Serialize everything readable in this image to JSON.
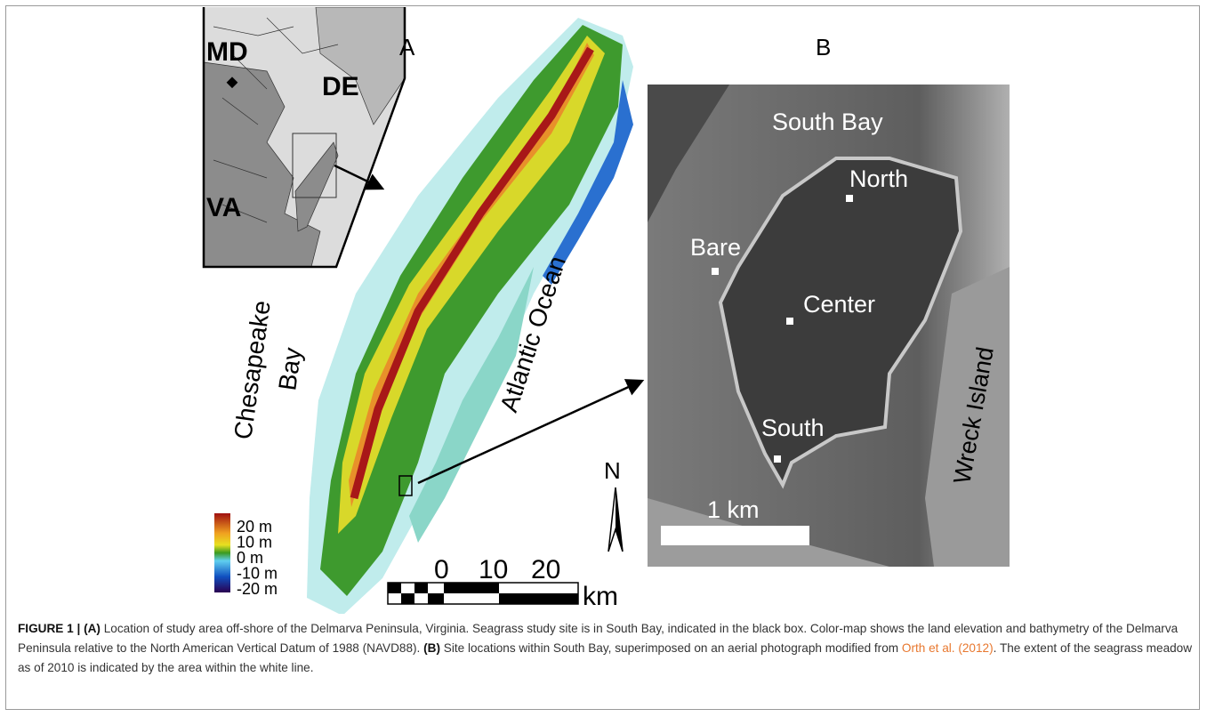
{
  "panel_a": {
    "label": "A",
    "inset": {
      "md": "MD",
      "de": "DE",
      "va": "VA"
    },
    "bay": [
      "Chesapeake",
      "Bay"
    ],
    "ocean": "Atlantic Ocean",
    "legend": [
      "20 m",
      "10 m",
      "0 m",
      "-10 m",
      "-20 m"
    ],
    "scale": {
      "ticks": [
        "0",
        "10",
        "20"
      ],
      "unit": "km"
    },
    "north": "N"
  },
  "panel_b": {
    "label": "B",
    "south_bay": "South Bay",
    "north": "North",
    "bare": "Bare",
    "center": "Center",
    "south": "South",
    "wreck_island": "Wreck Island",
    "scale": "1 km"
  },
  "caption": {
    "figure": "FIGURE 1 |",
    "a": "(A)",
    "text_a": " Location of study area off-shore of the Delmarva Peninsula, Virginia. Seagrass study site is in South Bay, indicated in the black box. Color-map shows the land elevation and bathymetry of the Delmarva Peninsula relative to the North American Vertical Datum of 1988 (NAVD88). ",
    "b": "(B)",
    "text_b": " Site locations within South Bay, superimposed on an aerial photograph modified from ",
    "link": "Orth et al. (2012)",
    "text_c": ". The extent of the seagrass meadow as of 2010 is indicated by the area within the white line."
  }
}
